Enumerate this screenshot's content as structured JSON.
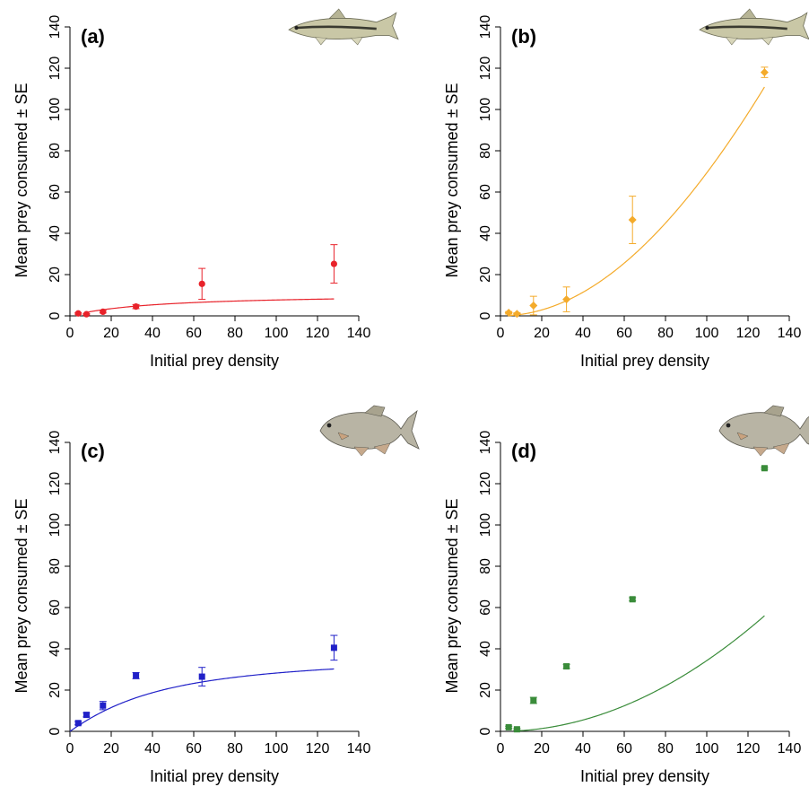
{
  "chart_data": [
    {
      "type": "scatter",
      "panel_label": "(a)",
      "fish_icon": "minnow-fish-icon",
      "xlabel": "Initial prey density",
      "ylabel": "Mean prey consumed ± SE",
      "xlim": [
        0,
        140
      ],
      "ylim": [
        0,
        140
      ],
      "xticks": [
        "0",
        "20",
        "40",
        "60",
        "80",
        "100",
        "120",
        "140"
      ],
      "yticks": [
        "0",
        "20",
        "40",
        "60",
        "80",
        "100",
        "120",
        "140"
      ],
      "color": "#e8222a",
      "marker": "circle",
      "grid": false,
      "points": [
        {
          "x": 4,
          "y": 1.2,
          "se": 0.4
        },
        {
          "x": 8,
          "y": 0.8,
          "se": 0.3
        },
        {
          "x": 16,
          "y": 2.0,
          "se": 0.6
        },
        {
          "x": 32,
          "y": 4.5,
          "se": 1.0
        },
        {
          "x": 64,
          "y": 15.5,
          "se": 7.5
        },
        {
          "x": 128,
          "y": 25.2,
          "se": 9.3
        }
      ],
      "curve": {
        "model": "type II",
        "a": 0.0119,
        "h": 2.245,
        "T": 24,
        "x0": 8
      }
    },
    {
      "type": "scatter",
      "panel_label": "(b)",
      "fish_icon": "minnow-fish-icon",
      "xlabel": "Initial prey density",
      "ylabel": "Mean prey consumed ± SE",
      "xlim": [
        0,
        140
      ],
      "ylim": [
        0,
        140
      ],
      "xticks": [
        "0",
        "20",
        "40",
        "60",
        "80",
        "100",
        "120",
        "140"
      ],
      "yticks": [
        "0",
        "20",
        "40",
        "60",
        "80",
        "100",
        "120",
        "140"
      ],
      "color": "#f4ab2b",
      "marker": "diamond",
      "grid": false,
      "points": [
        {
          "x": 4,
          "y": 1.5,
          "se": 0.6
        },
        {
          "x": 8,
          "y": 1.0,
          "se": 0.5
        },
        {
          "x": 16,
          "y": 5.0,
          "se": 4.5
        },
        {
          "x": 32,
          "y": 8.0,
          "se": 6.0
        },
        {
          "x": 64,
          "y": 46.5,
          "se": 11.5
        },
        {
          "x": 128,
          "y": 118,
          "se": 2.5
        }
      ],
      "curve": {
        "model": "type III",
        "b": 0.0003,
        "h": 0.013,
        "T": 24,
        "x0": 4
      }
    },
    {
      "type": "scatter",
      "panel_label": "(c)",
      "fish_icon": "bream-fish-icon",
      "xlabel": "Initial prey density",
      "ylabel": "Mean prey consumed ± SE",
      "xlim": [
        0,
        140
      ],
      "ylim": [
        0,
        140
      ],
      "xticks": [
        "0",
        "20",
        "40",
        "60",
        "80",
        "100",
        "120",
        "140"
      ],
      "yticks": [
        "0",
        "20",
        "40",
        "60",
        "80",
        "100",
        "120",
        "140"
      ],
      "color": "#2020c8",
      "marker": "square",
      "grid": false,
      "points": [
        {
          "x": 4,
          "y": 4.0,
          "se": 0.8
        },
        {
          "x": 8,
          "y": 8.0,
          "se": 1.0
        },
        {
          "x": 16,
          "y": 12.5,
          "se": 2.0
        },
        {
          "x": 32,
          "y": 27.0,
          "se": 1.5
        },
        {
          "x": 64,
          "y": 26.5,
          "se": 4.5
        },
        {
          "x": 128,
          "y": 40.5,
          "se": 6.0
        }
      ],
      "curve": {
        "model": "type II",
        "a": 0.0509,
        "h": 0.6186,
        "T": 24,
        "x0": 0
      }
    },
    {
      "type": "scatter",
      "panel_label": "(d)",
      "fish_icon": "bream-fish-icon",
      "xlabel": "Initial prey density",
      "ylabel": "Mean prey consumed ± SE",
      "xlim": [
        0,
        140
      ],
      "ylim": [
        0,
        140
      ],
      "xticks": [
        "0",
        "20",
        "40",
        "60",
        "80",
        "100",
        "120",
        "140"
      ],
      "yticks": [
        "0",
        "20",
        "40",
        "60",
        "80",
        "100",
        "120",
        "140"
      ],
      "color": "#3a8c3a",
      "marker": "square",
      "grid": false,
      "points": [
        {
          "x": 4,
          "y": 2.0,
          "se": 0.5
        },
        {
          "x": 8,
          "y": 1.0,
          "se": 0.4
        },
        {
          "x": 16,
          "y": 15.0,
          "se": 1.5
        },
        {
          "x": 32,
          "y": 31.5,
          "se": 1.0
        },
        {
          "x": 64,
          "y": 64.0,
          "se": 0.8
        },
        {
          "x": 128,
          "y": 127.5,
          "se": 0.5
        }
      ],
      "curve": {
        "model": "type III",
        "b": 0.0001435,
        "h": 0.00324,
        "T": 24,
        "x0": 8
      }
    }
  ]
}
